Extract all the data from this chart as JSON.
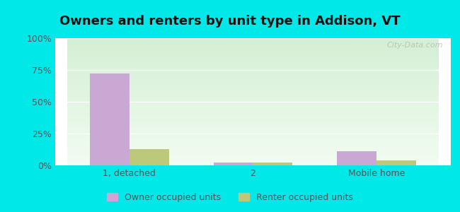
{
  "title": "Owners and renters by unit type in Addison, VT",
  "categories": [
    "1, detached",
    "2",
    "Mobile home"
  ],
  "owner_values": [
    72,
    2,
    11
  ],
  "renter_values": [
    13,
    2,
    4
  ],
  "owner_color": "#c9a8d4",
  "renter_color": "#bcc97a",
  "outer_background": "#00e8e8",
  "title_fontsize": 13,
  "tick_label_fontsize": 9,
  "legend_fontsize": 9,
  "ylim": [
    0,
    100
  ],
  "yticks": [
    0,
    25,
    50,
    75,
    100
  ],
  "ytick_labels": [
    "0%",
    "25%",
    "50%",
    "75%",
    "100%"
  ],
  "bar_width": 0.32,
  "legend_owner": "Owner occupied units",
  "legend_renter": "Renter occupied units",
  "grad_top": "#f2fcf2",
  "grad_bottom": "#d4efd4",
  "watermark": "City-Data.com"
}
